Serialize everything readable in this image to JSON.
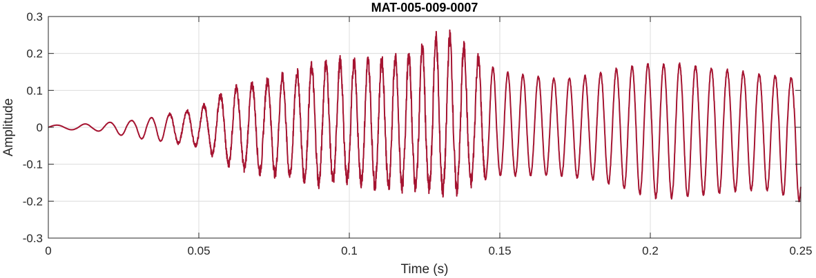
{
  "chart_data": {
    "type": "line",
    "title": "MAT-005-009-0007",
    "xlabel": "Time (s)",
    "ylabel": "Amplitude",
    "xlim": [
      0,
      0.25
    ],
    "ylim": [
      -0.3,
      0.3
    ],
    "grid": true,
    "x_ticks": [
      0,
      0.05,
      0.1,
      0.15,
      0.2,
      0.25
    ],
    "x_tick_labels": [
      "0",
      "0.05",
      "0.1",
      "0.15",
      "0.2",
      "0.25"
    ],
    "y_ticks": [
      -0.3,
      -0.2,
      -0.1,
      0,
      0.1,
      0.2,
      0.3
    ],
    "y_tick_labels": [
      "-0.3",
      "-0.2",
      "-0.1",
      "0",
      "0.1",
      "0.2",
      "0.3"
    ],
    "series": [
      {
        "color": "#a51431",
        "envelope": {
          "t": [
            0,
            0.015,
            0.03,
            0.04,
            0.05,
            0.06,
            0.07,
            0.08,
            0.09,
            0.1,
            0.11,
            0.12,
            0.13,
            0.135,
            0.14,
            0.15,
            0.16,
            0.17,
            0.18,
            0.19,
            0.2,
            0.21,
            0.22,
            0.23,
            0.24,
            0.25
          ],
          "max": [
            0.005,
            0.01,
            0.02,
            0.035,
            0.05,
            0.1,
            0.12,
            0.14,
            0.17,
            0.18,
            0.18,
            0.19,
            0.25,
            0.24,
            0.2,
            0.15,
            0.14,
            0.13,
            0.14,
            0.16,
            0.17,
            0.17,
            0.16,
            0.15,
            0.14,
            0.13
          ],
          "min": [
            -0.005,
            -0.008,
            -0.03,
            -0.04,
            -0.05,
            -0.1,
            -0.12,
            -0.13,
            -0.15,
            -0.14,
            -0.16,
            -0.16,
            -0.17,
            -0.17,
            -0.15,
            -0.13,
            -0.13,
            -0.13,
            -0.14,
            -0.16,
            -0.19,
            -0.19,
            -0.18,
            -0.17,
            -0.17,
            -0.2
          ]
        },
        "frequency_hz": {
          "t": [
            0,
            0.04,
            0.08,
            0.12,
            0.16,
            0.2,
            0.25
          ],
          "f": [
            90,
            170,
            205,
            225,
            195,
            190,
            188
          ]
        }
      }
    ]
  }
}
